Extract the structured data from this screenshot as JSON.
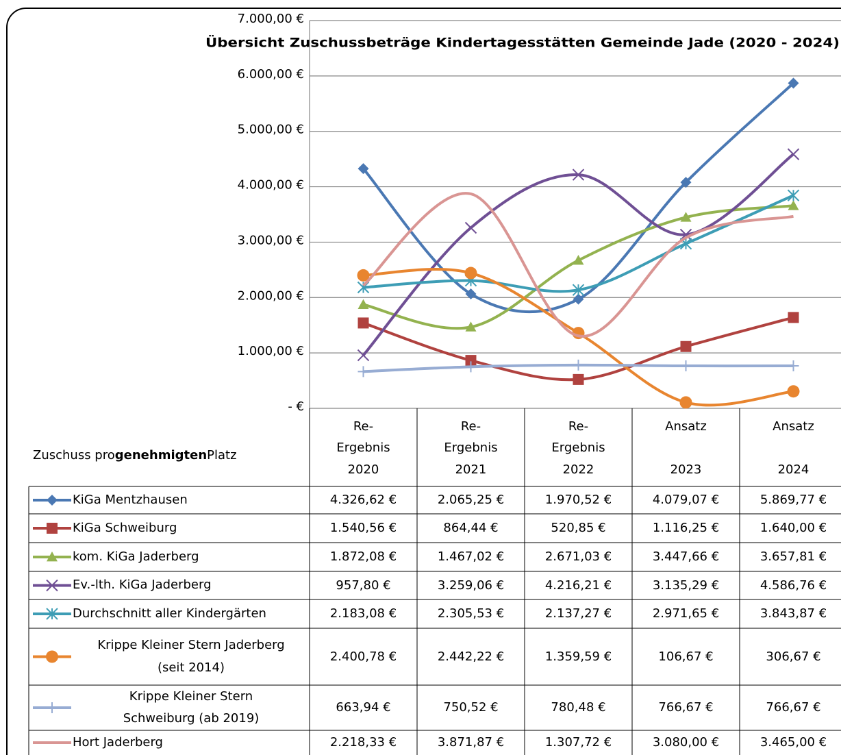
{
  "chart_data": {
    "type": "line",
    "title": "Übersicht Zuschussbeträge Kindertagesstätten Gemeinde Jade (2020 - 2024)",
    "table_label": [
      "Zuschuss pro",
      "genehmigten",
      "Platz"
    ],
    "categories": [
      "Re-\nErgebnis\n2020",
      "Re-\nErgebnis\n2021",
      "Re-\nErgebnis\n2022",
      "Ansatz\n\n2023",
      "Ansatz\n\n2024"
    ],
    "ylim": [
      0,
      7000
    ],
    "yticks": [
      {
        "value": 0,
        "label": "-  €"
      },
      {
        "value": 1000,
        "label": "1.000,00 €"
      },
      {
        "value": 2000,
        "label": "2.000,00 €"
      },
      {
        "value": 3000,
        "label": "3.000,00 €"
      },
      {
        "value": 4000,
        "label": "4.000,00 €"
      },
      {
        "value": 5000,
        "label": "5.000,00 €"
      },
      {
        "value": 6000,
        "label": "6.000,00 €"
      },
      {
        "value": 7000,
        "label": "7.000,00 €"
      }
    ],
    "grid": true,
    "smooth": true,
    "series": [
      {
        "name": "KiGa Mentzhausen",
        "color": "#4a78b3",
        "marker": "diamond",
        "values": [
          4326.62,
          2065.25,
          1970.52,
          4079.07,
          5869.77
        ],
        "value_labels": [
          "4.326,62 €",
          "2.065,25 €",
          "1.970,52 €",
          "4.079,07 €",
          "5.869,77 €"
        ]
      },
      {
        "name": "KiGa Schweiburg",
        "color": "#b0423f",
        "marker": "square",
        "values": [
          1540.56,
          864.44,
          520.85,
          1116.25,
          1640.0
        ],
        "value_labels": [
          "1.540,56 €",
          "864,44 €",
          "520,85 €",
          "1.116,25 €",
          "1.640,00 €"
        ]
      },
      {
        "name": "kom. KiGa Jaderberg",
        "color": "#93b24f",
        "marker": "triangle",
        "values": [
          1872.08,
          1467.02,
          2671.03,
          3447.66,
          3657.81
        ],
        "value_labels": [
          "1.872,08 €",
          "1.467,02 €",
          "2.671,03 €",
          "3.447,66 €",
          "3.657,81 €"
        ]
      },
      {
        "name": "Ev.-lth. KiGa Jaderberg",
        "color": "#6f4f94",
        "marker": "x",
        "values": [
          957.8,
          3259.06,
          4216.21,
          3135.29,
          4586.76
        ],
        "value_labels": [
          "957,80 €",
          "3.259,06 €",
          "4.216,21 €",
          "3.135,29 €",
          "4.586,76 €"
        ]
      },
      {
        "name": "Durchschnitt aller Kindergärten",
        "color": "#3d9db5",
        "marker": "star",
        "values": [
          2183.08,
          2305.53,
          2137.27,
          2971.65,
          3843.87
        ],
        "value_labels": [
          "2.183,08 €",
          "2.305,53 €",
          "2.137,27 €",
          "2.971,65 €",
          "3.843,87 €"
        ]
      },
      {
        "name": "Krippe Kleiner Stern  Jaderberg\n(seit 2014)",
        "color": "#e8852f",
        "marker": "circle",
        "values": [
          2400.78,
          2442.22,
          1359.59,
          106.67,
          306.67
        ],
        "value_labels": [
          "2.400,78 €",
          "2.442,22 €",
          "1.359,59 €",
          "106,67 €",
          "306,67 €"
        ]
      },
      {
        "name": "Krippe Kleiner Stern\nSchweiburg (ab 2019)",
        "color": "#97acd3",
        "marker": "plus",
        "values": [
          663.94,
          750.52,
          780.48,
          766.67,
          766.67
        ],
        "value_labels": [
          "663,94 €",
          "750,52 €",
          "780,48 €",
          "766,67 €",
          "766,67 €"
        ]
      },
      {
        "name": "Hort Jaderberg",
        "color": "#d99593",
        "marker": "none",
        "values": [
          2218.33,
          3871.87,
          1307.72,
          3080.0,
          3465.0
        ],
        "value_labels": [
          "2.218,33 €",
          "3.871,87 €",
          "1.307,72 €",
          "3.080,00 €",
          "3.465,00 €"
        ]
      }
    ]
  }
}
